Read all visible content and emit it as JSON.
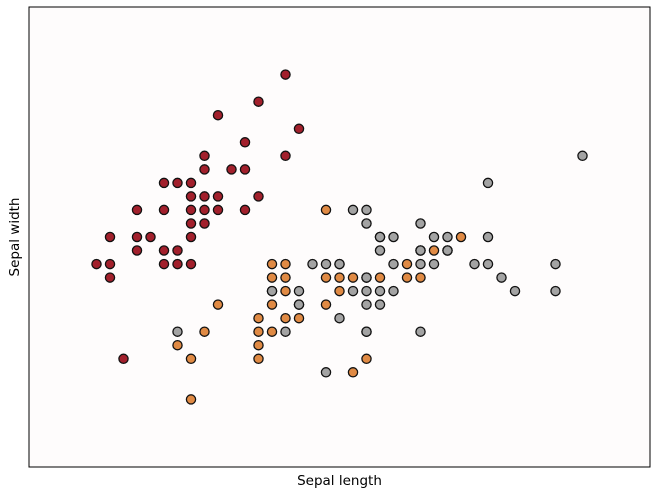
{
  "chart_data": {
    "type": "scatter",
    "xlabel": "Sepal length",
    "ylabel": "Sepal width",
    "xlim": [
      3.8,
      8.4
    ],
    "ylim": [
      1.5,
      4.9
    ],
    "ticks_visible": false,
    "grid": false,
    "legend": "none",
    "marker": {
      "edge_color": "#111111",
      "shape": "circle"
    },
    "series": [
      {
        "color": "#a2202c",
        "points": [
          [
            4.3,
            3.0
          ],
          [
            4.4,
            2.9
          ],
          [
            4.4,
            3.0
          ],
          [
            4.4,
            3.2
          ],
          [
            4.5,
            2.3
          ],
          [
            4.6,
            3.1
          ],
          [
            4.6,
            3.2
          ],
          [
            4.6,
            3.4
          ],
          [
            4.7,
            3.2
          ],
          [
            4.8,
            3.0
          ],
          [
            4.8,
            3.1
          ],
          [
            4.8,
            3.4
          ],
          [
            4.8,
            3.6
          ],
          [
            4.9,
            3.0
          ],
          [
            4.9,
            3.1
          ],
          [
            4.9,
            3.6
          ],
          [
            5.0,
            3.0
          ],
          [
            5.0,
            3.2
          ],
          [
            5.0,
            3.3
          ],
          [
            5.0,
            3.4
          ],
          [
            5.0,
            3.5
          ],
          [
            5.0,
            3.6
          ],
          [
            5.1,
            3.3
          ],
          [
            5.1,
            3.4
          ],
          [
            5.1,
            3.5
          ],
          [
            5.1,
            3.7
          ],
          [
            5.1,
            3.8
          ],
          [
            5.2,
            3.4
          ],
          [
            5.2,
            3.5
          ],
          [
            5.2,
            4.1
          ],
          [
            5.3,
            3.7
          ],
          [
            5.4,
            3.4
          ],
          [
            5.4,
            3.7
          ],
          [
            5.4,
            3.9
          ],
          [
            5.5,
            3.5
          ],
          [
            5.5,
            4.2
          ],
          [
            5.7,
            3.8
          ],
          [
            5.7,
            4.4
          ],
          [
            5.8,
            4.0
          ]
        ]
      },
      {
        "color": "#e08a44",
        "points": [
          [
            4.9,
            2.4
          ],
          [
            5.0,
            2.0
          ],
          [
            5.0,
            2.3
          ],
          [
            5.1,
            2.5
          ],
          [
            5.2,
            2.7
          ],
          [
            5.5,
            2.3
          ],
          [
            5.5,
            2.4
          ],
          [
            5.5,
            2.5
          ],
          [
            5.5,
            2.6
          ],
          [
            5.6,
            2.5
          ],
          [
            5.6,
            2.7
          ],
          [
            5.6,
            2.8
          ],
          [
            5.6,
            2.9
          ],
          [
            5.6,
            3.0
          ],
          [
            5.7,
            2.6
          ],
          [
            5.7,
            2.8
          ],
          [
            5.7,
            2.9
          ],
          [
            5.7,
            3.0
          ],
          [
            5.8,
            2.6
          ],
          [
            5.8,
            2.7
          ],
          [
            6.0,
            2.7
          ],
          [
            6.0,
            2.9
          ],
          [
            6.0,
            3.4
          ],
          [
            6.1,
            2.8
          ],
          [
            6.1,
            2.9
          ],
          [
            6.1,
            3.0
          ],
          [
            6.2,
            2.2
          ],
          [
            6.2,
            2.9
          ],
          [
            6.3,
            2.3
          ],
          [
            6.3,
            2.5
          ],
          [
            6.3,
            2.9
          ],
          [
            6.4,
            2.9
          ],
          [
            6.4,
            3.2
          ],
          [
            6.6,
            2.9
          ],
          [
            6.6,
            3.0
          ],
          [
            6.7,
            2.9
          ],
          [
            6.7,
            3.1
          ],
          [
            6.8,
            3.1
          ],
          [
            6.9,
            3.1
          ],
          [
            7.0,
            3.2
          ]
        ]
      },
      {
        "color": "#a3a3a3",
        "points": [
          [
            4.9,
            2.5
          ],
          [
            5.6,
            2.8
          ],
          [
            5.7,
            2.5
          ],
          [
            5.8,
            2.7
          ],
          [
            5.8,
            2.8
          ],
          [
            5.9,
            3.0
          ],
          [
            6.0,
            2.2
          ],
          [
            6.0,
            3.0
          ],
          [
            6.1,
            2.6
          ],
          [
            6.1,
            3.0
          ],
          [
            6.2,
            2.8
          ],
          [
            6.2,
            3.4
          ],
          [
            6.3,
            2.5
          ],
          [
            6.3,
            2.7
          ],
          [
            6.3,
            2.8
          ],
          [
            6.3,
            2.9
          ],
          [
            6.3,
            3.3
          ],
          [
            6.3,
            3.4
          ],
          [
            6.4,
            2.7
          ],
          [
            6.4,
            2.8
          ],
          [
            6.4,
            3.1
          ],
          [
            6.4,
            3.2
          ],
          [
            6.5,
            2.8
          ],
          [
            6.5,
            3.0
          ],
          [
            6.5,
            3.2
          ],
          [
            6.7,
            2.5
          ],
          [
            6.7,
            3.0
          ],
          [
            6.7,
            3.1
          ],
          [
            6.7,
            3.3
          ],
          [
            6.8,
            3.0
          ],
          [
            6.8,
            3.2
          ],
          [
            6.9,
            3.1
          ],
          [
            6.9,
            3.2
          ],
          [
            7.1,
            3.0
          ],
          [
            7.2,
            3.0
          ],
          [
            7.2,
            3.2
          ],
          [
            7.2,
            3.6
          ],
          [
            7.3,
            2.9
          ],
          [
            7.4,
            2.8
          ],
          [
            7.7,
            2.8
          ],
          [
            7.7,
            3.0
          ],
          [
            7.9,
            3.8
          ]
        ]
      }
    ]
  }
}
